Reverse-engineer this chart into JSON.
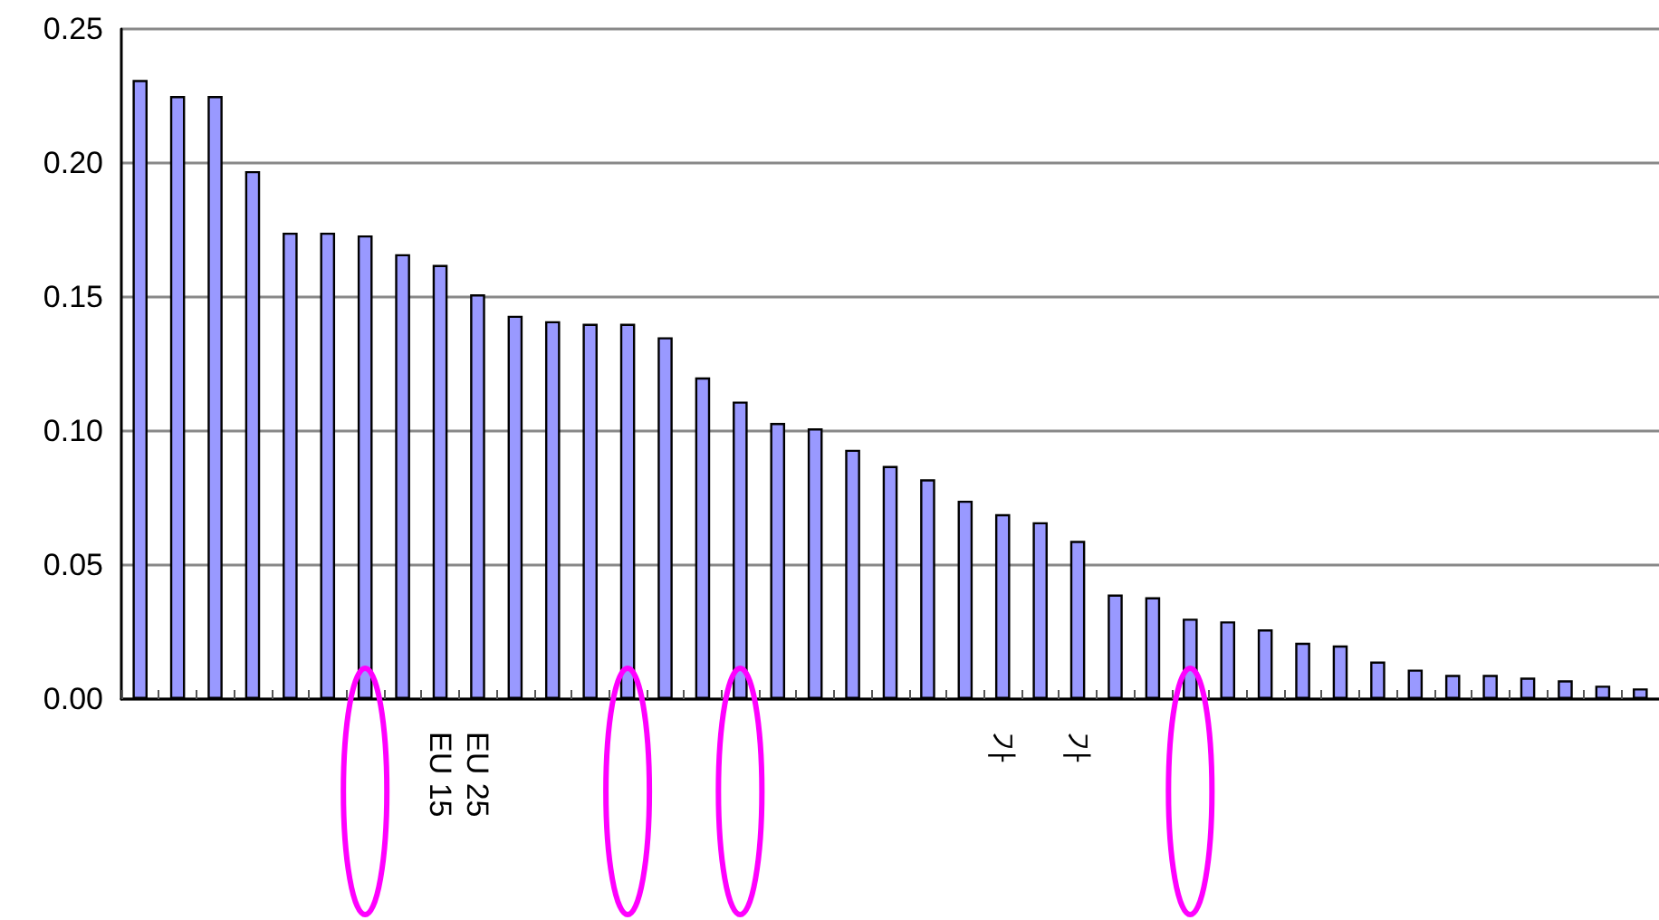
{
  "chart_data": {
    "type": "bar",
    "categories": [
      null,
      null,
      null,
      null,
      null,
      null,
      null,
      null,
      "EU 15",
      "EU 25",
      null,
      null,
      null,
      null,
      null,
      null,
      null,
      null,
      null,
      null,
      null,
      null,
      null,
      "가",
      null,
      "가",
      null,
      null,
      null,
      null,
      null,
      null,
      null,
      null,
      null,
      null,
      null,
      null,
      null,
      null,
      null
    ],
    "values": [
      0.231,
      0.225,
      0.225,
      0.197,
      0.174,
      0.174,
      0.173,
      0.166,
      0.162,
      0.151,
      0.143,
      0.141,
      0.14,
      0.14,
      0.135,
      0.12,
      0.111,
      0.103,
      0.101,
      0.093,
      0.087,
      0.082,
      0.074,
      0.069,
      0.066,
      0.059,
      0.039,
      0.038,
      0.03,
      0.029,
      0.026,
      0.021,
      0.02,
      0.014,
      0.011,
      0.009,
      0.009,
      0.008,
      0.007,
      0.005,
      0.004
    ],
    "color": "#9999ff",
    "ylim": [
      0,
      0.25
    ],
    "yticks": [
      {
        "value": 0,
        "label": "0.00"
      },
      {
        "value": 0.05,
        "label": "0.05"
      },
      {
        "value": 0.1,
        "label": "0.10"
      },
      {
        "value": 0.15,
        "label": "0.15"
      },
      {
        "value": 0.2,
        "label": "0.20"
      },
      {
        "value": 0.25,
        "label": "0.25"
      }
    ],
    "grid": "y"
  }
}
